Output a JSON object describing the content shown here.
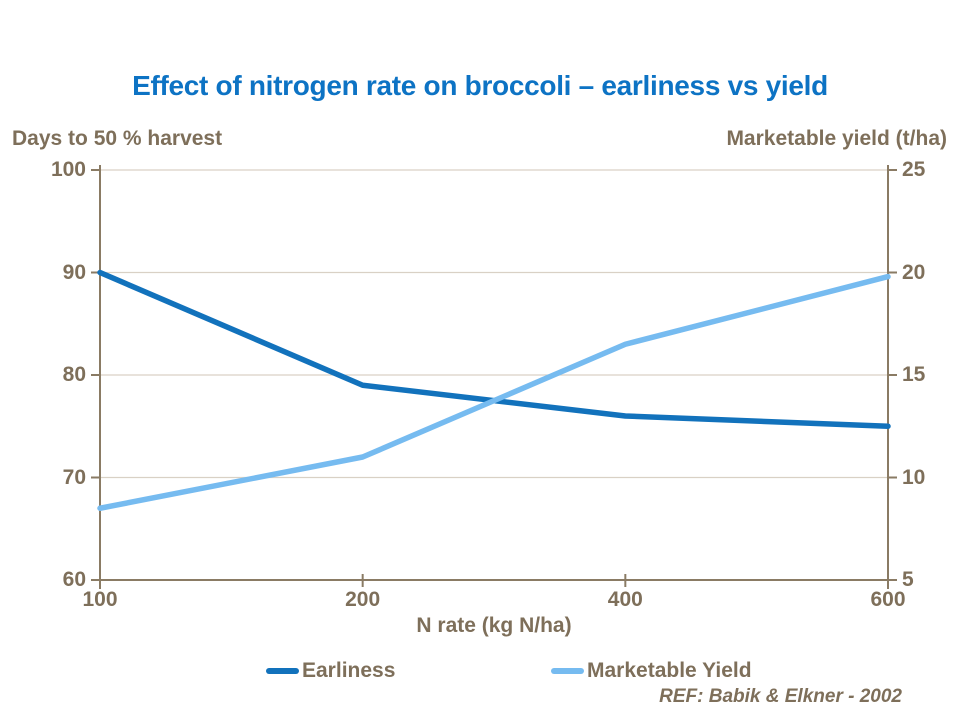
{
  "page": {
    "background": "#FFFFFF"
  },
  "colors": {
    "title": "#0D73C4",
    "text": "#7E6F5A",
    "axis": "#8A7B64",
    "grid": "#D9D1C5"
  },
  "header": {
    "title": "Effect of nitrogen rate on broccoli – earliness vs yield"
  },
  "footnote": {
    "text": "REF: Babik & Elkner - 2002"
  },
  "chart_data": {
    "type": "line",
    "title": "Effect of nitrogen rate on broccoli – earliness vs yield",
    "categories": [
      "100",
      "200",
      "400",
      "600"
    ],
    "xlabel": "N rate (kg N/ha)",
    "left_axis": {
      "label": "Days to 50 % harvest",
      "min": 60,
      "max": 100,
      "ticks": [
        100,
        90,
        80,
        70,
        60
      ]
    },
    "right_axis": {
      "label": "Marketable yield (t/ha)",
      "min": 5,
      "max": 25,
      "ticks": [
        25,
        20,
        15,
        10,
        5
      ]
    },
    "series": [
      {
        "name": "Earliness",
        "axis": "left",
        "color": "#1272BC",
        "values": [
          90,
          79,
          76,
          75
        ]
      },
      {
        "name": "Marketable Yield",
        "axis": "right",
        "color": "#76BBF0",
        "values": [
          8.5,
          11,
          16.5,
          19.8
        ]
      }
    ],
    "grid": "horizontal",
    "legend_position": "bottom",
    "annotation": "REF: Babik & Elkner - 2002"
  }
}
